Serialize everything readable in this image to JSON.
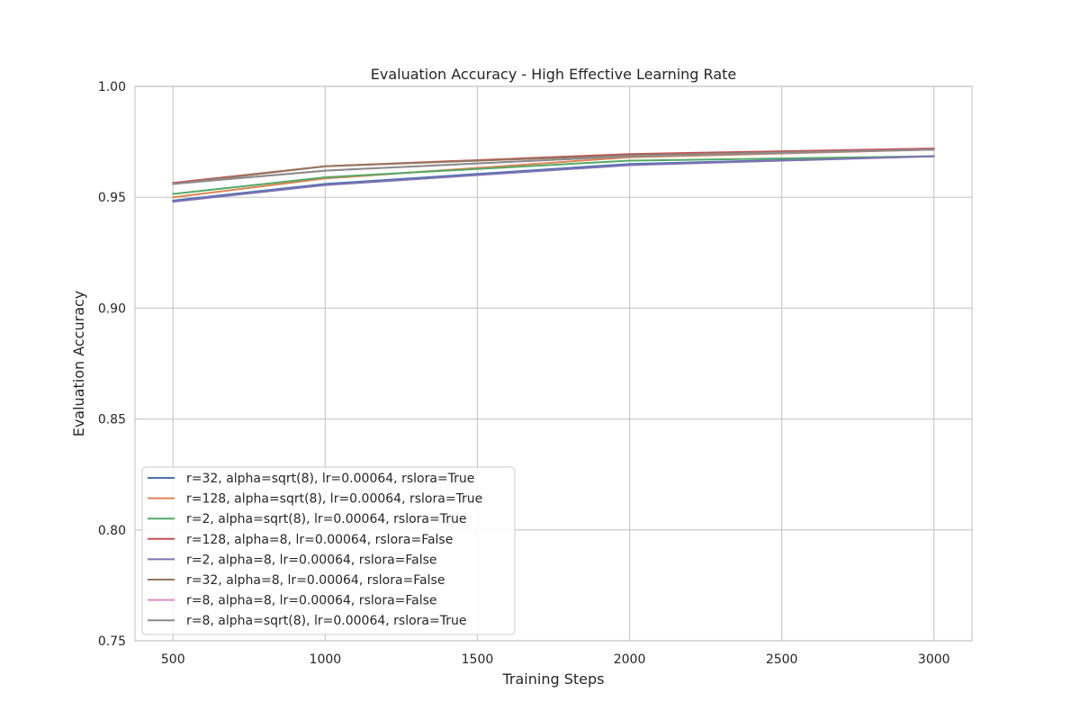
{
  "chart_data": {
    "type": "line",
    "title": "Evaluation Accuracy - High Effective Learning Rate",
    "xlabel": "Training Steps",
    "ylabel": "Evaluation Accuracy",
    "xlim": [
      375,
      3125
    ],
    "ylim": [
      0.75,
      1.0
    ],
    "x_ticks": [
      500,
      1000,
      1500,
      2000,
      2500,
      3000
    ],
    "y_ticks": [
      0.75,
      0.8,
      0.85,
      0.9,
      0.95,
      1.0
    ],
    "grid": true,
    "legend_position": "lower-left",
    "x": [
      500,
      1000,
      2000,
      3000
    ],
    "series": [
      {
        "name": "r=32, alpha=sqrt(8), lr=0.00064, rslora=True",
        "color": "#4c72b0",
        "values": [
          0.9485,
          0.956,
          0.965,
          0.9685
        ]
      },
      {
        "name": "r=128, alpha=sqrt(8), lr=0.00064, rslora=True",
        "color": "#dd8452",
        "values": [
          0.95,
          0.9585,
          0.968,
          0.9715
        ]
      },
      {
        "name": "r=2, alpha=sqrt(8), lr=0.00064, rslora=True",
        "color": "#55a868",
        "values": [
          0.9515,
          0.959,
          0.9665,
          0.9685
        ]
      },
      {
        "name": "r=128, alpha=8, lr=0.00064, rslora=False",
        "color": "#c44e52",
        "values": [
          0.9565,
          0.964,
          0.9695,
          0.972
        ]
      },
      {
        "name": "r=2, alpha=8, lr=0.00064, rslora=False",
        "color": "#8172b3",
        "values": [
          0.948,
          0.9555,
          0.9645,
          0.9685
        ]
      },
      {
        "name": "r=32, alpha=8, lr=0.00064, rslora=False",
        "color": "#937860",
        "values": [
          0.956,
          0.964,
          0.969,
          0.9715
        ]
      },
      {
        "name": "r=8, alpha=8, lr=0.00064, rslora=False",
        "color": "#da8bc3",
        "values": [
          0.956,
          0.962,
          0.9685,
          0.9715
        ]
      },
      {
        "name": "r=8, alpha=sqrt(8), lr=0.00064, rslora=True",
        "color": "#8c8c8c",
        "values": [
          0.956,
          0.962,
          0.9685,
          0.9715
        ]
      }
    ]
  }
}
